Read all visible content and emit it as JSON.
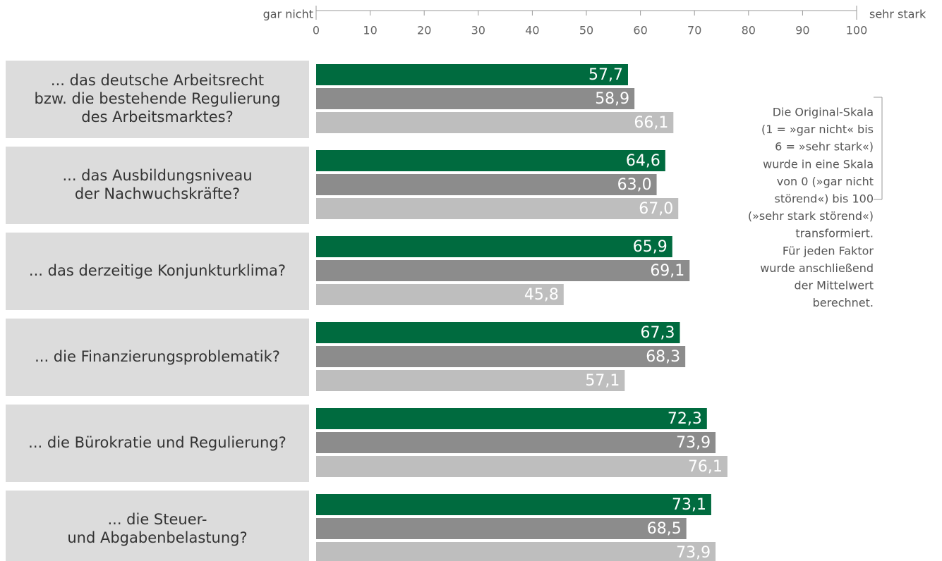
{
  "chart_data": {
    "type": "bar",
    "orientation": "horizontal",
    "axis_min_label": "gar nicht",
    "axis_max_label": "sehr stark",
    "xlim": [
      0,
      100
    ],
    "xticks": [
      0,
      10,
      20,
      30,
      40,
      50,
      60,
      70,
      80,
      90,
      100
    ],
    "categories": [
      [
        "... das deutsche Arbeitsrecht",
        "bzw. die bestehende Regulierung",
        "des Arbeitsmarktes?"
      ],
      [
        "... das Ausbildungsniveau",
        "der Nachwuchskräfte?"
      ],
      [
        "... das derzeitige Konjunkturklima?"
      ],
      [
        "... die Finanzierungsproblematik?"
      ],
      [
        "... die Bürokratie und Regulierung?"
      ],
      [
        "... die Steuer-",
        "und Abgabenbelastung?"
      ]
    ],
    "series": [
      {
        "color": "#006b3f",
        "values": [
          57.7,
          64.6,
          65.9,
          67.3,
          72.3,
          73.1
        ],
        "value_labels": [
          "57,7",
          "64,6",
          "65,9",
          "67,3",
          "72,3",
          "73,1"
        ]
      },
      {
        "color": "#8c8c8c",
        "values": [
          58.9,
          63.0,
          69.1,
          68.3,
          73.9,
          68.5
        ],
        "value_labels": [
          "58,9",
          "63,0",
          "69,1",
          "68,3",
          "73,9",
          "68,5"
        ]
      },
      {
        "color": "#bebebe",
        "values": [
          66.1,
          67.0,
          45.8,
          57.1,
          76.1,
          73.9
        ],
        "value_labels": [
          "66,1",
          "67,0",
          "45,8",
          "57,1",
          "76,1",
          "73,9"
        ]
      }
    ],
    "note": [
      "Die Original-Skala",
      "(1 = »gar nicht« bis",
      "6 = »sehr stark«)",
      "wurde in eine Skala",
      "von 0 (»gar nicht",
      "störend«) bis 100",
      "(»sehr stark störend«)",
      "transformiert.",
      "Für jeden Faktor",
      "wurde anschließend",
      "der Mittelwert",
      "berechnet."
    ]
  }
}
